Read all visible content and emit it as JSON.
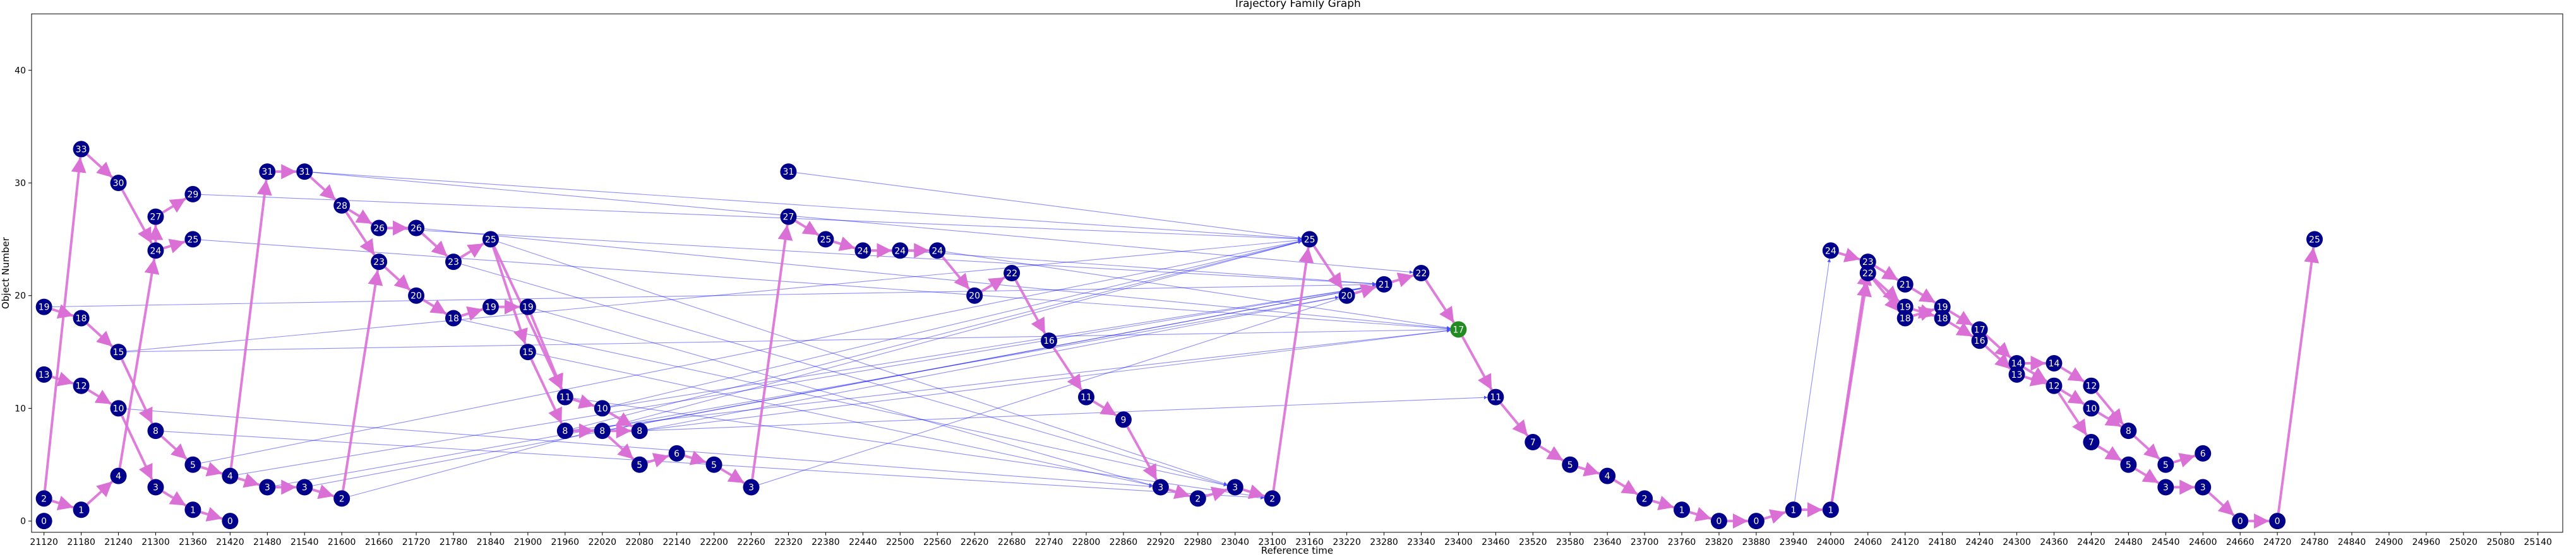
{
  "chart_data": {
    "type": "scatter",
    "title": "Trajectory Family Graph",
    "xlabel": "Reference time",
    "ylabel": "Object Number",
    "xlim": [
      21100,
      25180
    ],
    "ylim": [
      -1,
      45
    ],
    "xticks": [
      21120,
      21180,
      21240,
      21300,
      21360,
      21420,
      21480,
      21540,
      21600,
      21660,
      21720,
      21780,
      21840,
      21900,
      21960,
      22020,
      22080,
      22140,
      22200,
      22260,
      22320,
      22380,
      22440,
      22500,
      22560,
      22620,
      22680,
      22740,
      22800,
      22860,
      22920,
      22980,
      23040,
      23100,
      23160,
      23220,
      23280,
      23340,
      23400,
      23460,
      23520,
      23580,
      23640,
      23700,
      23760,
      23820,
      23880,
      23940,
      24000,
      24060,
      24120,
      24180,
      24240,
      24300,
      24360,
      24420,
      24480,
      24540,
      24600,
      24660,
      24720,
      24780,
      24840,
      24900,
      24960,
      25020,
      25080,
      25140
    ],
    "yticks": [
      0,
      10,
      20,
      30,
      40
    ],
    "grid": false,
    "colors": {
      "node": "#00008b",
      "highlight_node": "#228b22",
      "family_edge": "#da70d6",
      "link_edge": "#0000ff"
    },
    "nodes": [
      {
        "id": "a1",
        "x": 21120,
        "y": 0,
        "label": "0"
      },
      {
        "id": "a2",
        "x": 21120,
        "y": 2,
        "label": "2"
      },
      {
        "id": "a3",
        "x": 21120,
        "y": 13,
        "label": "13"
      },
      {
        "id": "a4",
        "x": 21120,
        "y": 19,
        "label": "19"
      },
      {
        "id": "b1",
        "x": 21180,
        "y": 1,
        "label": "1"
      },
      {
        "id": "b2",
        "x": 21180,
        "y": 12,
        "label": "12"
      },
      {
        "id": "b3",
        "x": 21180,
        "y": 18,
        "label": "18"
      },
      {
        "id": "b4",
        "x": 21180,
        "y": 33,
        "label": "33"
      },
      {
        "id": "c1",
        "x": 21240,
        "y": 4,
        "label": "4"
      },
      {
        "id": "c2",
        "x": 21240,
        "y": 10,
        "label": "10"
      },
      {
        "id": "c3",
        "x": 21240,
        "y": 15,
        "label": "15"
      },
      {
        "id": "c4",
        "x": 21240,
        "y": 30,
        "label": "30"
      },
      {
        "id": "d1",
        "x": 21300,
        "y": 3,
        "label": "3"
      },
      {
        "id": "d2",
        "x": 21300,
        "y": 8,
        "label": "8"
      },
      {
        "id": "d3",
        "x": 21300,
        "y": 24,
        "label": "24"
      },
      {
        "id": "d4",
        "x": 21300,
        "y": 27,
        "label": "27"
      },
      {
        "id": "e1",
        "x": 21360,
        "y": 1,
        "label": "1"
      },
      {
        "id": "e2",
        "x": 21360,
        "y": 5,
        "label": "5"
      },
      {
        "id": "e3",
        "x": 21360,
        "y": 25,
        "label": "25"
      },
      {
        "id": "e4",
        "x": 21360,
        "y": 29,
        "label": "29"
      },
      {
        "id": "f1",
        "x": 21420,
        "y": 0,
        "label": "0"
      },
      {
        "id": "f2",
        "x": 21420,
        "y": 4,
        "label": "4"
      },
      {
        "id": "g1",
        "x": 21480,
        "y": 3,
        "label": "3"
      },
      {
        "id": "g2",
        "x": 21480,
        "y": 31,
        "label": "31"
      },
      {
        "id": "h1",
        "x": 21540,
        "y": 3,
        "label": "3"
      },
      {
        "id": "h2",
        "x": 21540,
        "y": 31,
        "label": "31"
      },
      {
        "id": "i1",
        "x": 21600,
        "y": 2,
        "label": "2"
      },
      {
        "id": "i2",
        "x": 21600,
        "y": 28,
        "label": "28"
      },
      {
        "id": "j1",
        "x": 21660,
        "y": 23,
        "label": "23"
      },
      {
        "id": "j2",
        "x": 21660,
        "y": 26,
        "label": "26"
      },
      {
        "id": "k1",
        "x": 21720,
        "y": 20,
        "label": "20"
      },
      {
        "id": "k2",
        "x": 21720,
        "y": 26,
        "label": "26"
      },
      {
        "id": "l1",
        "x": 21780,
        "y": 18,
        "label": "18"
      },
      {
        "id": "l2",
        "x": 21780,
        "y": 23,
        "label": "23"
      },
      {
        "id": "m1",
        "x": 21840,
        "y": 19,
        "label": "19"
      },
      {
        "id": "m2",
        "x": 21840,
        "y": 25,
        "label": "25"
      },
      {
        "id": "n1",
        "x": 21900,
        "y": 15,
        "label": "15"
      },
      {
        "id": "n2",
        "x": 21900,
        "y": 19,
        "label": "19"
      },
      {
        "id": "o1",
        "x": 21960,
        "y": 8,
        "label": "8"
      },
      {
        "id": "o2",
        "x": 21960,
        "y": 11,
        "label": "11"
      },
      {
        "id": "p1",
        "x": 22020,
        "y": 8,
        "label": "8"
      },
      {
        "id": "p2",
        "x": 22020,
        "y": 10,
        "label": "10"
      },
      {
        "id": "q1",
        "x": 22080,
        "y": 5,
        "label": "5"
      },
      {
        "id": "q2",
        "x": 22080,
        "y": 8,
        "label": "8"
      },
      {
        "id": "r1",
        "x": 22140,
        "y": 6,
        "label": "6"
      },
      {
        "id": "s1",
        "x": 22200,
        "y": 5,
        "label": "5"
      },
      {
        "id": "t1",
        "x": 22260,
        "y": 3,
        "label": "3"
      },
      {
        "id": "u1",
        "x": 22320,
        "y": 27,
        "label": "27"
      },
      {
        "id": "u2",
        "x": 22320,
        "y": 31,
        "label": "31"
      },
      {
        "id": "v1",
        "x": 22380,
        "y": 25,
        "label": "25"
      },
      {
        "id": "w1",
        "x": 22440,
        "y": 24,
        "label": "24"
      },
      {
        "id": "x1",
        "x": 22500,
        "y": 24,
        "label": "24"
      },
      {
        "id": "y1",
        "x": 22560,
        "y": 24,
        "label": "24"
      },
      {
        "id": "z1",
        "x": 22620,
        "y": 20,
        "label": "20"
      },
      {
        "id": "aa1",
        "x": 22680,
        "y": 22,
        "label": "22"
      },
      {
        "id": "ab1",
        "x": 22740,
        "y": 16,
        "label": "16"
      },
      {
        "id": "ac1",
        "x": 22800,
        "y": 11,
        "label": "11"
      },
      {
        "id": "ad1",
        "x": 22860,
        "y": 9,
        "label": "9"
      },
      {
        "id": "ae1",
        "x": 22920,
        "y": 3,
        "label": "3"
      },
      {
        "id": "af1",
        "x": 22980,
        "y": 2,
        "label": "2"
      },
      {
        "id": "ag1",
        "x": 23040,
        "y": 3,
        "label": "3"
      },
      {
        "id": "ah1",
        "x": 23100,
        "y": 2,
        "label": "2"
      },
      {
        "id": "ai1",
        "x": 23160,
        "y": 25,
        "label": "25"
      },
      {
        "id": "aj1",
        "x": 23220,
        "y": 20,
        "label": "20"
      },
      {
        "id": "ak1",
        "x": 23280,
        "y": 21,
        "label": "21"
      },
      {
        "id": "al1",
        "x": 23340,
        "y": 22,
        "label": "22"
      },
      {
        "id": "am1",
        "x": 23400,
        "y": 17,
        "label": "17",
        "highlight": true
      },
      {
        "id": "an1",
        "x": 23460,
        "y": 11,
        "label": "11"
      },
      {
        "id": "ao1",
        "x": 23520,
        "y": 7,
        "label": "7"
      },
      {
        "id": "ap1",
        "x": 23580,
        "y": 5,
        "label": "5"
      },
      {
        "id": "aq1",
        "x": 23640,
        "y": 4,
        "label": "4"
      },
      {
        "id": "ar1",
        "x": 23700,
        "y": 2,
        "label": "2"
      },
      {
        "id": "as1",
        "x": 23760,
        "y": 1,
        "label": "1"
      },
      {
        "id": "at1",
        "x": 23820,
        "y": 0,
        "label": "0"
      },
      {
        "id": "au1",
        "x": 23880,
        "y": 0,
        "label": "0"
      },
      {
        "id": "av1",
        "x": 23940,
        "y": 1,
        "label": "1"
      },
      {
        "id": "aw1",
        "x": 24000,
        "y": 1,
        "label": "1"
      },
      {
        "id": "aw2",
        "x": 24000,
        "y": 24,
        "label": "24"
      },
      {
        "id": "ax1",
        "x": 24060,
        "y": 22,
        "label": "22"
      },
      {
        "id": "ax2",
        "x": 24060,
        "y": 23,
        "label": "23"
      },
      {
        "id": "ay1",
        "x": 24120,
        "y": 18,
        "label": "18"
      },
      {
        "id": "ay2",
        "x": 24120,
        "y": 19,
        "label": "19"
      },
      {
        "id": "ay3",
        "x": 24120,
        "y": 21,
        "label": "21"
      },
      {
        "id": "az1",
        "x": 24180,
        "y": 18,
        "label": "18"
      },
      {
        "id": "az2",
        "x": 24180,
        "y": 19,
        "label": "19"
      },
      {
        "id": "ba1",
        "x": 24240,
        "y": 16,
        "label": "16"
      },
      {
        "id": "ba2",
        "x": 24240,
        "y": 17,
        "label": "17"
      },
      {
        "id": "bb1",
        "x": 24300,
        "y": 13,
        "label": "13"
      },
      {
        "id": "bb2",
        "x": 24300,
        "y": 14,
        "label": "14"
      },
      {
        "id": "bc1",
        "x": 24360,
        "y": 12,
        "label": "12"
      },
      {
        "id": "bc2",
        "x": 24360,
        "y": 14,
        "label": "14"
      },
      {
        "id": "bd1",
        "x": 24420,
        "y": 7,
        "label": "7"
      },
      {
        "id": "bd2",
        "x": 24420,
        "y": 10,
        "label": "10"
      },
      {
        "id": "bd3",
        "x": 24420,
        "y": 12,
        "label": "12"
      },
      {
        "id": "be1",
        "x": 24480,
        "y": 5,
        "label": "5"
      },
      {
        "id": "be2",
        "x": 24480,
        "y": 8,
        "label": "8"
      },
      {
        "id": "bf1",
        "x": 24540,
        "y": 3,
        "label": "3"
      },
      {
        "id": "bf2",
        "x": 24540,
        "y": 5,
        "label": "5"
      },
      {
        "id": "bg1",
        "x": 24600,
        "y": 3,
        "label": "3"
      },
      {
        "id": "bg2",
        "x": 24600,
        "y": 6,
        "label": "6"
      },
      {
        "id": "bh1",
        "x": 24660,
        "y": 0,
        "label": "0"
      },
      {
        "id": "bi1",
        "x": 24720,
        "y": 0,
        "label": "0"
      },
      {
        "id": "bj1",
        "x": 24780,
        "y": 25,
        "label": "25"
      }
    ],
    "family_edges": [
      [
        "a2",
        "b4"
      ],
      [
        "a2",
        "b1"
      ],
      [
        "a4",
        "b3"
      ],
      [
        "a3",
        "b2"
      ],
      [
        "b4",
        "c4"
      ],
      [
        "b3",
        "c3"
      ],
      [
        "b2",
        "c2"
      ],
      [
        "b1",
        "c1"
      ],
      [
        "c4",
        "d3"
      ],
      [
        "c3",
        "d2"
      ],
      [
        "c2",
        "d1"
      ],
      [
        "c1",
        "d3"
      ],
      [
        "d3",
        "e3"
      ],
      [
        "d2",
        "e2"
      ],
      [
        "d1",
        "e1"
      ],
      [
        "d4",
        "e4"
      ],
      [
        "d3",
        "d4"
      ],
      [
        "e1",
        "f1"
      ],
      [
        "e2",
        "f2"
      ],
      [
        "f2",
        "g1"
      ],
      [
        "f2",
        "g2"
      ],
      [
        "g1",
        "h1"
      ],
      [
        "g2",
        "h2"
      ],
      [
        "h1",
        "i1"
      ],
      [
        "h2",
        "i2"
      ],
      [
        "i1",
        "j1"
      ],
      [
        "i2",
        "j2"
      ],
      [
        "i2",
        "j1"
      ],
      [
        "j1",
        "k1"
      ],
      [
        "j2",
        "k2"
      ],
      [
        "k1",
        "l1"
      ],
      [
        "k2",
        "l2"
      ],
      [
        "l1",
        "m1"
      ],
      [
        "l2",
        "m2"
      ],
      [
        "m1",
        "n2"
      ],
      [
        "m2",
        "n1"
      ],
      [
        "m2",
        "o2"
      ],
      [
        "n1",
        "o1"
      ],
      [
        "n2",
        "o2"
      ],
      [
        "o1",
        "p1"
      ],
      [
        "o2",
        "p2"
      ],
      [
        "p1",
        "q1"
      ],
      [
        "p2",
        "q2"
      ],
      [
        "p1",
        "q2"
      ],
      [
        "q1",
        "r1"
      ],
      [
        "r1",
        "s1"
      ],
      [
        "s1",
        "t1"
      ],
      [
        "t1",
        "u1"
      ],
      [
        "u1",
        "v1"
      ],
      [
        "v1",
        "w1"
      ],
      [
        "w1",
        "x1"
      ],
      [
        "x1",
        "y1"
      ],
      [
        "y1",
        "z1"
      ],
      [
        "z1",
        "aa1"
      ],
      [
        "aa1",
        "ab1"
      ],
      [
        "ab1",
        "ac1"
      ],
      [
        "ac1",
        "ad1"
      ],
      [
        "ad1",
        "ae1"
      ],
      [
        "ae1",
        "af1"
      ],
      [
        "af1",
        "ag1"
      ],
      [
        "ag1",
        "ah1"
      ],
      [
        "ah1",
        "ai1"
      ],
      [
        "ai1",
        "aj1"
      ],
      [
        "aj1",
        "ak1"
      ],
      [
        "ak1",
        "al1"
      ],
      [
        "al1",
        "am1"
      ],
      [
        "am1",
        "an1"
      ],
      [
        "an1",
        "ao1"
      ],
      [
        "ao1",
        "ap1"
      ],
      [
        "ap1",
        "aq1"
      ],
      [
        "aq1",
        "ar1"
      ],
      [
        "ar1",
        "as1"
      ],
      [
        "as1",
        "at1"
      ],
      [
        "at1",
        "au1"
      ],
      [
        "au1",
        "av1"
      ],
      [
        "av1",
        "aw1"
      ],
      [
        "aw1",
        "ax1"
      ],
      [
        "aw1",
        "ax2"
      ],
      [
        "aw2",
        "ax2"
      ],
      [
        "ax2",
        "ay3"
      ],
      [
        "ax1",
        "ay2"
      ],
      [
        "ax1",
        "ay1"
      ],
      [
        "ay3",
        "az2"
      ],
      [
        "ay2",
        "az1"
      ],
      [
        "ay1",
        "az2"
      ],
      [
        "az2",
        "ba2"
      ],
      [
        "az1",
        "ba1"
      ],
      [
        "ba2",
        "bb2"
      ],
      [
        "ba1",
        "bb1"
      ],
      [
        "bb2",
        "bc2"
      ],
      [
        "bb1",
        "bc1"
      ],
      [
        "bb2",
        "bc1"
      ],
      [
        "bc2",
        "bd3"
      ],
      [
        "bc1",
        "bd2"
      ],
      [
        "bc1",
        "bd1"
      ],
      [
        "bd3",
        "be2"
      ],
      [
        "bd2",
        "be2"
      ],
      [
        "bd1",
        "be1"
      ],
      [
        "be2",
        "bf2"
      ],
      [
        "be1",
        "bf1"
      ],
      [
        "bf2",
        "bg2"
      ],
      [
        "bf1",
        "bg1"
      ],
      [
        "bg1",
        "bh1"
      ],
      [
        "bh1",
        "bi1"
      ],
      [
        "bi1",
        "bj1"
      ]
    ],
    "link_edges": [
      [
        "a4",
        "ak1"
      ],
      [
        "c3",
        "ai1"
      ],
      [
        "c3",
        "am1"
      ],
      [
        "c2",
        "ae1"
      ],
      [
        "e4",
        "ai1"
      ],
      [
        "e3",
        "am1"
      ],
      [
        "h2",
        "ai1"
      ],
      [
        "h2",
        "al1"
      ],
      [
        "j2",
        "ak1"
      ],
      [
        "k2",
        "am1"
      ],
      [
        "l2",
        "ah1"
      ],
      [
        "m2",
        "ag1"
      ],
      [
        "n2",
        "af1"
      ],
      [
        "n1",
        "ae1"
      ],
      [
        "o2",
        "ah1"
      ],
      [
        "p2",
        "ak1"
      ],
      [
        "p2",
        "ai1"
      ],
      [
        "q2",
        "am1"
      ],
      [
        "q2",
        "aj1"
      ],
      [
        "e2",
        "ai1"
      ],
      [
        "f2",
        "ak1"
      ],
      [
        "h1",
        "ak1"
      ],
      [
        "g1",
        "aj1"
      ],
      [
        "o1",
        "ai1"
      ],
      [
        "o1",
        "am1"
      ],
      [
        "p1",
        "ak1"
      ],
      [
        "q2",
        "an1"
      ],
      [
        "u2",
        "ai1"
      ],
      [
        "t1",
        "ak1"
      ],
      [
        "x1",
        "ak1"
      ],
      [
        "y1",
        "am1"
      ],
      [
        "av1",
        "aw2"
      ],
      [
        "l1",
        "ag1"
      ],
      [
        "d2",
        "ah1"
      ],
      [
        "i1",
        "ai1"
      ]
    ]
  }
}
